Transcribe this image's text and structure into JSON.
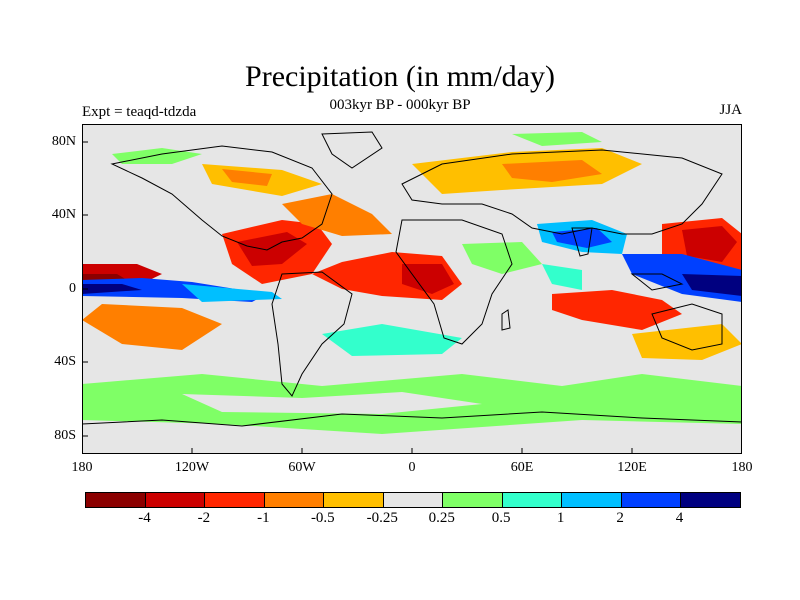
{
  "title": "Precipitation (in mm/day)",
  "subtitle_left": "Expt = teaqd-tdzda",
  "subtitle_center": "003kyr BP - 000kyr BP",
  "subtitle_right": "JJA",
  "lat_labels": [
    "80N",
    "40N",
    "0",
    "40S",
    "80S"
  ],
  "lon_labels": [
    "180",
    "120W",
    "60W",
    "0",
    "60E",
    "120E",
    "180"
  ],
  "colorbar": {
    "colors": [
      "#8b0000",
      "#cc0000",
      "#ff2600",
      "#ff7f00",
      "#ffbf00",
      "#e6e6e6",
      "#7fff66",
      "#33ffcc",
      "#00bfff",
      "#0040ff",
      "#000080"
    ],
    "labels": [
      "-4",
      "-2",
      "-1",
      "-0.5",
      "-0.25",
      "0.25",
      "0.5",
      "1",
      "2",
      "4"
    ]
  },
  "colors": {
    "land_background": "#e6e6e6",
    "coast": "#000000"
  }
}
